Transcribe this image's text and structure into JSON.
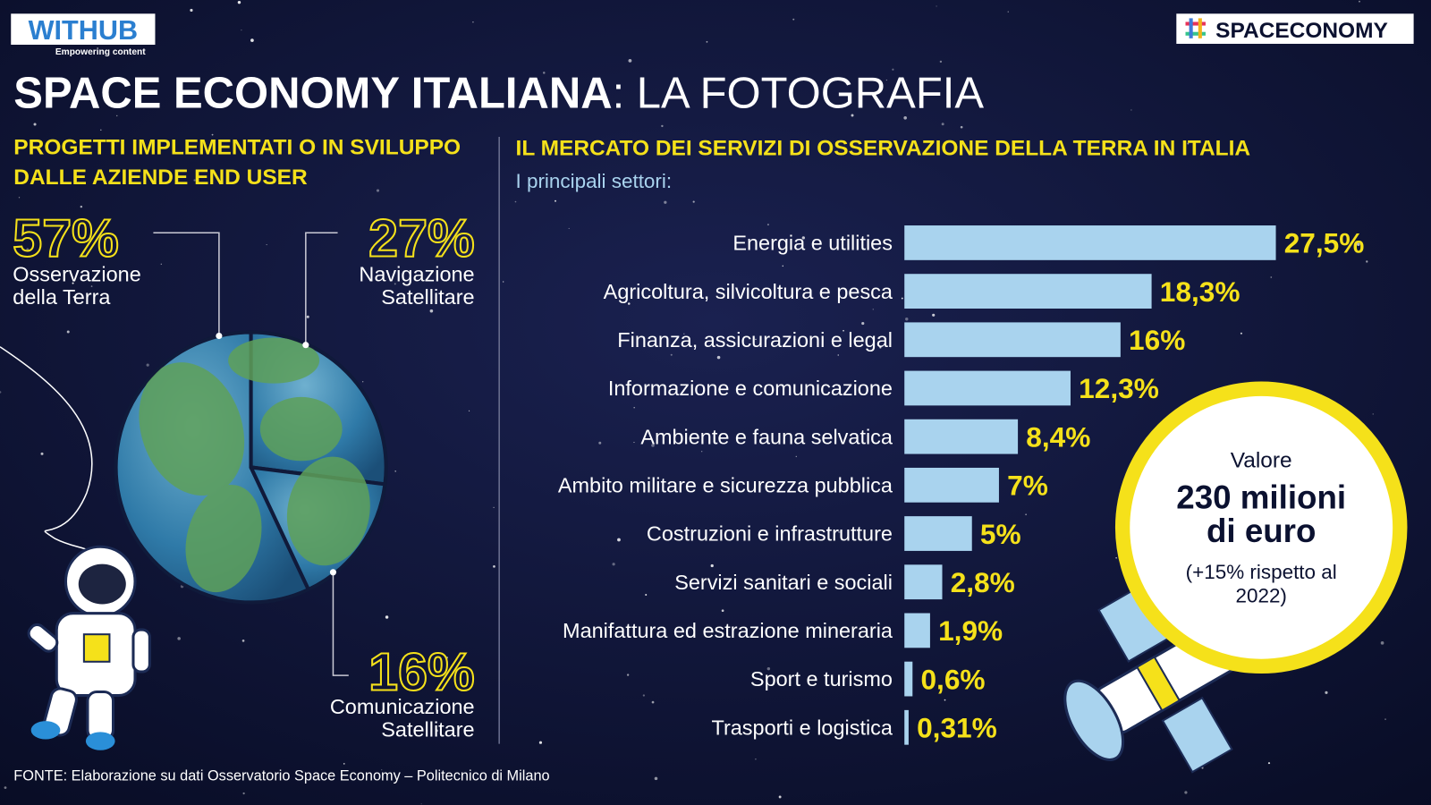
{
  "header": {
    "logo": "WITHUB",
    "logo_tagline": "Empowering content",
    "brand": "SPACECONOMY",
    "title_bold": "SPACE ECONOMY ITALIANA",
    "title_rest": ": LA FOTOGRAFIA"
  },
  "chart_data": [
    {
      "type": "pie",
      "title": "PROGETTI IMPLEMENTATI O IN SVILUPPO DALLE AZIENDE END USER",
      "categories": [
        "Osservazione della Terra",
        "Navigazione Satellitare",
        "Comunicazione Satellitare"
      ],
      "values": [
        57,
        27,
        16
      ],
      "value_labels": [
        "57%",
        "27%",
        "16%"
      ]
    },
    {
      "type": "bar",
      "title": "IL MERCATO DEI SERVIZI DI OSSERVAZIONE DELLA TERRA IN ITALIA",
      "subtitle": "I principali settori:",
      "categories": [
        "Energia e utilities",
        "Agricoltura, silvicoltura e pesca",
        "Finanza, assicurazioni e legal",
        "Informazione e comunicazione",
        "Ambiente e fauna selvatica",
        "Ambito militare e sicurezza pubblica",
        "Costruzioni e infrastrutture",
        "Servizi sanitari e sociali",
        "Manifattura ed estrazione mineraria",
        "Sport e turismo",
        "Trasporti e logistica"
      ],
      "values": [
        27.5,
        18.3,
        16,
        12.3,
        8.4,
        7,
        5,
        2.8,
        1.9,
        0.6,
        0.31
      ],
      "value_labels": [
        "27,5%",
        "18,3%",
        "16%",
        "12,3%",
        "8,4%",
        "7%",
        "5%",
        "2,8%",
        "1,9%",
        "0,6%",
        "0,31%"
      ],
      "color": "#a9d3ee"
    }
  ],
  "callout": {
    "label": "Valore",
    "value": "230 milioni di euro",
    "note": "(+15% rispetto al 2022)"
  },
  "source": "FONTE: Elaborazione su dati Osservatorio Space Economy – Politecnico di Milano"
}
